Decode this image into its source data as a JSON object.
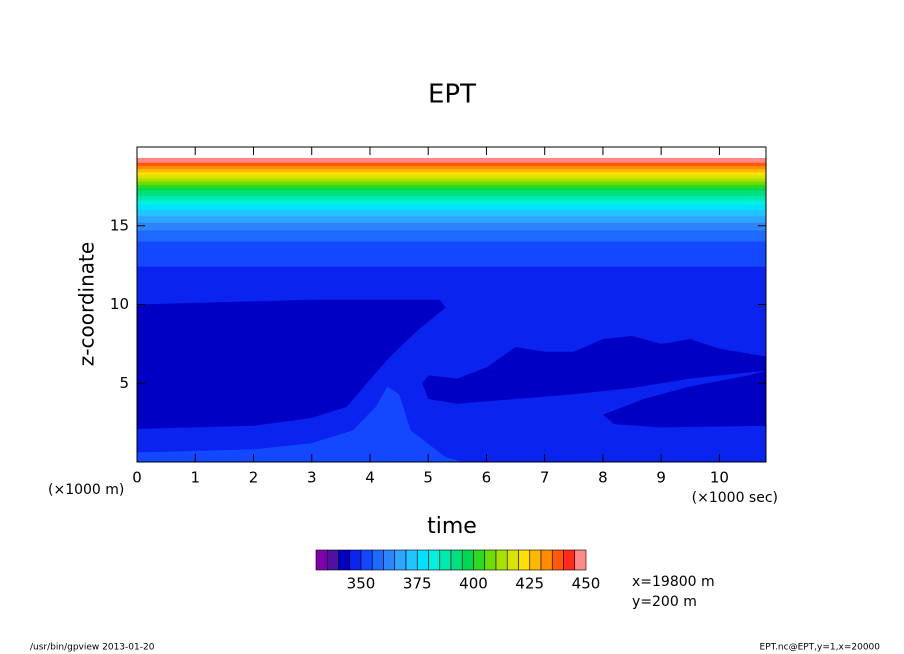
{
  "chart_data": {
    "type": "contour",
    "title": "EPT",
    "x_label": "time",
    "y_label": "z-coordinate",
    "y_unit": "(×1000 m)",
    "x_unit": "(×1000 sec)",
    "xlim": [
      0,
      10.8
    ],
    "ylim": [
      0,
      20
    ],
    "xticks": [
      0,
      1,
      2,
      3,
      4,
      5,
      6,
      7,
      8,
      9,
      10
    ],
    "yticks": [
      5,
      10,
      15
    ],
    "levels": [
      330,
      335,
      340,
      345,
      350,
      355,
      360,
      365,
      370,
      375,
      380,
      385,
      390,
      395,
      400,
      405,
      410,
      415,
      420,
      425,
      430,
      435,
      440,
      445,
      450
    ],
    "colors": [
      "#8000b0",
      "#5010a0",
      "#0000c4",
      "#0a23ee",
      "#1448ff",
      "#1e6aff",
      "#2a85ff",
      "#30a5ff",
      "#20c5ff",
      "#00e0ff",
      "#00f0e0",
      "#00eab0",
      "#00e080",
      "#00da50",
      "#30d820",
      "#70dc00",
      "#a8e000",
      "#d8e400",
      "#ffe000",
      "#ffb800",
      "#ff8c00",
      "#ff5a00",
      "#ff2a1a",
      "#ff8a8a"
    ],
    "colorbar_ticks": [
      350,
      375,
      400,
      425,
      450
    ],
    "regions": [
      {
        "level": 345,
        "points": [
          [
            0,
            0
          ],
          [
            10.8,
            0
          ],
          [
            10.8,
            19.3
          ],
          [
            0,
            19.3
          ]
        ]
      },
      {
        "level": 340,
        "points": [
          [
            0,
            2.1
          ],
          [
            2,
            2.3
          ],
          [
            3,
            2.8
          ],
          [
            3.6,
            3.5
          ],
          [
            3.9,
            4.8
          ],
          [
            4.3,
            6.5
          ],
          [
            4.8,
            8.3
          ],
          [
            5.3,
            9.8
          ],
          [
            5.2,
            10.3
          ],
          [
            3,
            10.3
          ],
          [
            1,
            10.1
          ],
          [
            0,
            10
          ]
        ]
      },
      {
        "level": 340,
        "points": [
          [
            5,
            5.5
          ],
          [
            5.5,
            5.3
          ],
          [
            6,
            6
          ],
          [
            6.5,
            7.3
          ],
          [
            7,
            7
          ],
          [
            7.5,
            7
          ],
          [
            8,
            7.8
          ],
          [
            8.5,
            8
          ],
          [
            9,
            7.5
          ],
          [
            9.5,
            7.8
          ],
          [
            10,
            7.2
          ],
          [
            10.8,
            6.7
          ],
          [
            10.8,
            5.8
          ],
          [
            9.5,
            5.3
          ],
          [
            8.5,
            4.7
          ],
          [
            7.5,
            4.3
          ],
          [
            6.5,
            4
          ],
          [
            5.5,
            3.7
          ],
          [
            5,
            4
          ],
          [
            4.9,
            5
          ]
        ]
      },
      {
        "level": 340,
        "points": [
          [
            8,
            3
          ],
          [
            8.7,
            4
          ],
          [
            9.5,
            4.8
          ],
          [
            10.5,
            5.5
          ],
          [
            10.8,
            5.8
          ],
          [
            10.8,
            2.3
          ],
          [
            9,
            2.2
          ],
          [
            8.2,
            2.4
          ]
        ]
      },
      {
        "level": 350,
        "points": [
          [
            0,
            0
          ],
          [
            0,
            0.6
          ],
          [
            2,
            0.8
          ],
          [
            3,
            1.2
          ],
          [
            3.7,
            2
          ],
          [
            4.1,
            3.5
          ],
          [
            4.3,
            4.8
          ],
          [
            4.5,
            4.3
          ],
          [
            4.7,
            2
          ],
          [
            5.3,
            0.3
          ],
          [
            5.6,
            0
          ]
        ]
      }
    ],
    "band_top": 19.3,
    "bands": [
      {
        "level": 350,
        "bottom": 12.4
      },
      {
        "level": 355,
        "bottom": 14.0
      },
      {
        "level": 360,
        "bottom": 14.7
      },
      {
        "level": 365,
        "bottom": 15.2
      },
      {
        "level": 370,
        "bottom": 15.6
      },
      {
        "level": 375,
        "bottom": 16.0
      },
      {
        "level": 380,
        "bottom": 16.3
      },
      {
        "level": 385,
        "bottom": 16.6
      },
      {
        "level": 390,
        "bottom": 16.9
      },
      {
        "level": 395,
        "bottom": 17.2
      },
      {
        "level": 400,
        "bottom": 17.4
      },
      {
        "level": 405,
        "bottom": 17.6
      },
      {
        "level": 410,
        "bottom": 17.8
      },
      {
        "level": 415,
        "bottom": 18.0
      },
      {
        "level": 420,
        "bottom": 18.2
      },
      {
        "level": 425,
        "bottom": 18.4
      },
      {
        "level": 430,
        "bottom": 18.6
      },
      {
        "level": 435,
        "bottom": 18.8
      },
      {
        "level": 445,
        "bottom": 19.0
      }
    ],
    "annotations": [
      "x=19800 m",
      "y=200 m"
    ],
    "footer_left": "/usr/bin/gpview  2013-01-20",
    "footer_right": "EPT.nc@EPT,y=1,x=20000"
  }
}
